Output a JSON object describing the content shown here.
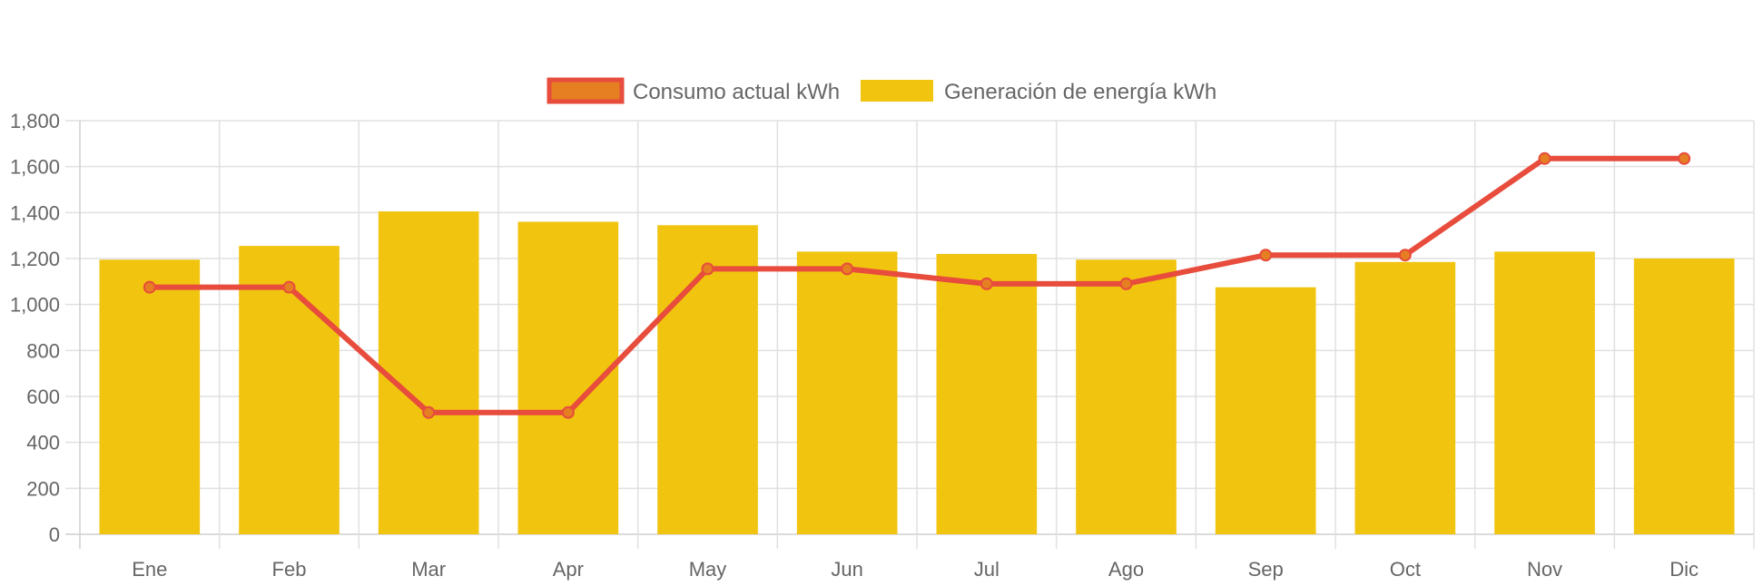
{
  "chart_data": {
    "type": "bar",
    "title": "",
    "xlabel": "",
    "ylabel": "",
    "categories": [
      "Ene",
      "Feb",
      "Mar",
      "Apr",
      "May",
      "Jun",
      "Jul",
      "Ago",
      "Sep",
      "Oct",
      "Nov",
      "Dic"
    ],
    "series": [
      {
        "name": "Consumo actual kWh",
        "type": "line",
        "color": "#e74c3c",
        "point_color": "#e67e22",
        "values": [
          1075,
          1075,
          530,
          530,
          1155,
          1155,
          1090,
          1090,
          1215,
          1215,
          1635,
          1635
        ]
      },
      {
        "name": "Generación de energía kWh",
        "type": "bar",
        "color": "#f1c40f",
        "values": [
          1195,
          1255,
          1405,
          1360,
          1345,
          1230,
          1220,
          1195,
          1075,
          1185,
          1230,
          1200
        ]
      }
    ],
    "ylim": [
      0,
      1800
    ],
    "yticks": [
      0,
      200,
      400,
      600,
      800,
      1000,
      1200,
      1400,
      1600,
      1800
    ],
    "ytick_labels": [
      "0",
      "200",
      "400",
      "600",
      "800",
      "1,000",
      "1,200",
      "1,400",
      "1,600",
      "1,800"
    ],
    "grid": true,
    "legend_position": "top-center"
  }
}
